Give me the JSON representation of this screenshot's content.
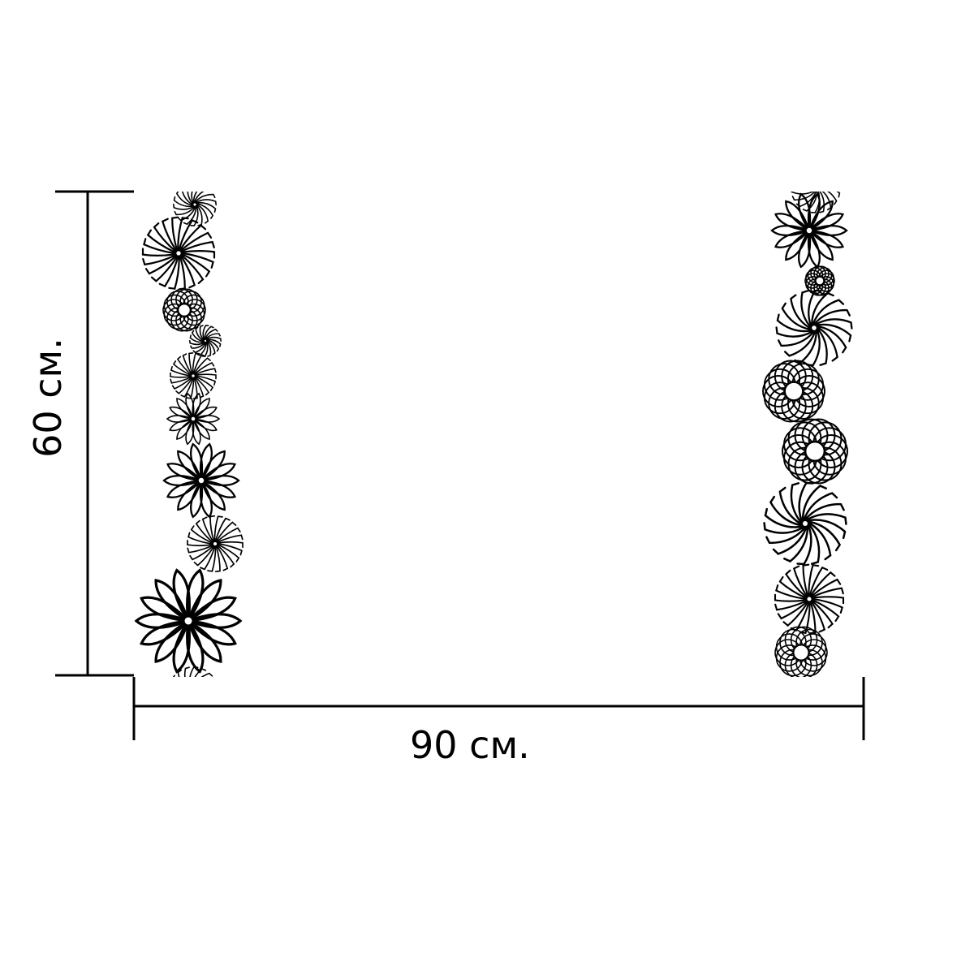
{
  "dimensions": {
    "width_label": "90 см.",
    "height_label": "60 см.",
    "line_color": "#000000"
  },
  "panel": {
    "background": "#ffffff",
    "ornament_color": "#000000"
  },
  "ornaments": {
    "left_column": [
      {
        "kind": "swirl"
      },
      {
        "kind": "star"
      },
      {
        "kind": "ring"
      },
      {
        "kind": "swirl"
      },
      {
        "kind": "star"
      },
      {
        "kind": "petal"
      },
      {
        "kind": "petal"
      },
      {
        "kind": "star"
      },
      {
        "kind": "petal"
      },
      {
        "kind": "swirl"
      }
    ],
    "right_column": [
      {
        "kind": "swirl"
      },
      {
        "kind": "petal"
      },
      {
        "kind": "ring"
      },
      {
        "kind": "swirl"
      },
      {
        "kind": "ring"
      },
      {
        "kind": "ring"
      },
      {
        "kind": "swirl"
      },
      {
        "kind": "star"
      },
      {
        "kind": "ring"
      }
    ]
  }
}
